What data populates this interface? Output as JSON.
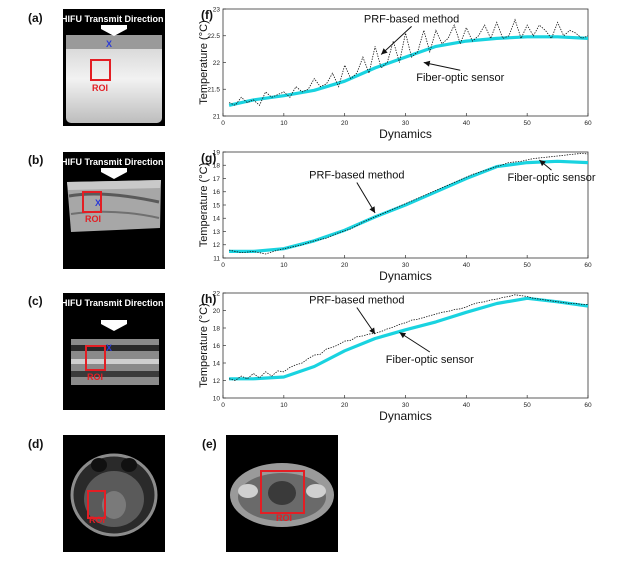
{
  "panels": {
    "a": {
      "label": "(a)",
      "direction_text": "HIFU Transmit Direction",
      "roi_text": "ROI",
      "marker": "X"
    },
    "b": {
      "label": "(b)",
      "direction_text": "HIFU Transmit Direction",
      "roi_text": "ROI",
      "marker": "X"
    },
    "c": {
      "label": "(c)",
      "direction_text": "HIFU Transmit Direction",
      "roi_text": "ROI",
      "marker": "X"
    },
    "d": {
      "label": "(d)",
      "roi_text": "ROI"
    },
    "e": {
      "label": "(e)",
      "roi_text": "ROI"
    }
  },
  "colors": {
    "sensor": "#19d3e0",
    "prf": "#111111",
    "roi": "#e31e24"
  },
  "chart_data": [
    {
      "panel": "(f)",
      "type": "line",
      "xlabel": "Dynamics",
      "ylabel": "Temperature (°C)",
      "xlim": [
        0,
        60
      ],
      "ylim": [
        21,
        23
      ],
      "xticks": [
        0,
        10,
        20,
        30,
        40,
        50,
        60
      ],
      "yticks": [
        21,
        21.5,
        22,
        22.5,
        23
      ],
      "ytick_labels": [
        "21",
        "21.5",
        "22",
        "22.5",
        "23"
      ],
      "annotations": [
        {
          "text": "PRF-based method",
          "x": 31,
          "y": 22.75,
          "ax": 26,
          "ay": 22.15
        },
        {
          "text": "Fiber-optic sensor",
          "x": 39,
          "y": 21.65,
          "ax": 33,
          "ay": 22.0
        }
      ],
      "series": [
        {
          "name": "Fiber-optic sensor",
          "style": "sensor",
          "x": [
            1,
            5,
            10,
            15,
            20,
            25,
            30,
            35,
            40,
            45,
            50,
            55,
            60
          ],
          "y": [
            21.2,
            21.3,
            21.38,
            21.48,
            21.65,
            21.9,
            22.1,
            22.3,
            22.4,
            22.45,
            22.48,
            22.48,
            22.45
          ]
        },
        {
          "name": "PRF-based method",
          "style": "prf",
          "x": [
            1,
            2,
            3,
            4,
            5,
            6,
            7,
            8,
            9,
            10,
            11,
            12,
            13,
            14,
            15,
            16,
            17,
            18,
            19,
            20,
            21,
            22,
            23,
            24,
            25,
            26,
            27,
            28,
            29,
            30,
            31,
            32,
            33,
            34,
            35,
            36,
            37,
            38,
            39,
            40,
            41,
            42,
            43,
            44,
            45,
            46,
            47,
            48,
            49,
            50,
            51,
            52,
            53,
            54,
            55,
            56,
            57,
            58,
            59,
            60
          ],
          "y": [
            21.25,
            21.2,
            21.35,
            21.25,
            21.3,
            21.2,
            21.45,
            21.35,
            21.4,
            21.45,
            21.35,
            21.55,
            21.45,
            21.5,
            21.7,
            21.55,
            21.6,
            21.8,
            21.55,
            21.95,
            21.7,
            21.8,
            22.1,
            21.8,
            22.3,
            21.9,
            22.0,
            22.4,
            22.0,
            22.55,
            22.1,
            22.2,
            22.6,
            22.2,
            22.6,
            22.35,
            22.45,
            22.7,
            22.35,
            22.65,
            22.4,
            22.5,
            22.7,
            22.45,
            22.75,
            22.45,
            22.5,
            22.8,
            22.45,
            22.7,
            22.5,
            22.7,
            22.6,
            22.45,
            22.75,
            22.5,
            22.6,
            22.55,
            22.45,
            22.5
          ]
        }
      ]
    },
    {
      "panel": "(g)",
      "type": "line",
      "xlabel": "Dynamics",
      "ylabel": "Temperature (°C)",
      "xlim": [
        0,
        60
      ],
      "ylim": [
        11,
        19
      ],
      "xticks": [
        0,
        10,
        20,
        30,
        40,
        50,
        60
      ],
      "yticks": [
        11,
        12,
        13,
        14,
        15,
        16,
        17,
        18,
        19
      ],
      "ytick_labels": [
        "11",
        "12",
        "13",
        "14",
        "15",
        "16",
        "17",
        "18",
        "19"
      ],
      "annotations": [
        {
          "text": "PRF-based method",
          "x": 22,
          "y": 17.0,
          "ax": 25,
          "ay": 14.4
        },
        {
          "text": "Fiber-optic sensor",
          "x": 54,
          "y": 16.8,
          "ax": 52,
          "ay": 18.4
        }
      ],
      "series": [
        {
          "name": "Fiber-optic sensor",
          "style": "sensor",
          "x": [
            1,
            5,
            10,
            15,
            20,
            25,
            30,
            35,
            40,
            45,
            50,
            55,
            60
          ],
          "y": [
            11.5,
            11.5,
            11.7,
            12.3,
            13.1,
            14.1,
            15.0,
            16.0,
            17.0,
            17.9,
            18.2,
            18.3,
            18.2
          ]
        },
        {
          "name": "PRF-based method",
          "style": "prf",
          "x": [
            1,
            3,
            5,
            7,
            9,
            11,
            13,
            15,
            17,
            19,
            21,
            23,
            25,
            27,
            29,
            31,
            33,
            35,
            37,
            39,
            41,
            43,
            45,
            47,
            49,
            51,
            53,
            55,
            57,
            59,
            60
          ],
          "y": [
            11.6,
            11.4,
            11.5,
            11.3,
            11.6,
            11.8,
            12.0,
            12.3,
            12.5,
            12.9,
            13.2,
            13.7,
            14.1,
            14.5,
            14.9,
            15.3,
            15.7,
            16.1,
            16.5,
            16.9,
            17.3,
            17.6,
            17.9,
            18.2,
            18.3,
            18.5,
            18.6,
            18.7,
            18.8,
            18.9,
            18.85
          ]
        }
      ]
    },
    {
      "panel": "(h)",
      "type": "line",
      "xlabel": "Dynamics",
      "ylabel": "Temperature (°C)",
      "xlim": [
        0,
        60
      ],
      "ylim": [
        10,
        22
      ],
      "xticks": [
        0,
        10,
        20,
        30,
        40,
        50,
        60
      ],
      "yticks": [
        10,
        12,
        14,
        16,
        18,
        20,
        22
      ],
      "ytick_labels": [
        "10",
        "12",
        "14",
        "16",
        "18",
        "20",
        "22"
      ],
      "annotations": [
        {
          "text": "PRF-based method",
          "x": 22,
          "y": 20.8,
          "ax": 25,
          "ay": 17.3
        },
        {
          "text": "Fiber-optic sensor",
          "x": 34,
          "y": 14.0,
          "ax": 29,
          "ay": 17.5
        }
      ],
      "series": [
        {
          "name": "Fiber-optic sensor",
          "style": "sensor",
          "x": [
            1,
            5,
            10,
            15,
            20,
            25,
            30,
            35,
            40,
            45,
            50,
            55,
            60
          ],
          "y": [
            12.2,
            12.2,
            12.4,
            13.6,
            15.4,
            16.8,
            17.8,
            18.7,
            19.8,
            20.8,
            21.4,
            21.0,
            20.5
          ]
        },
        {
          "name": "PRF-based method",
          "style": "prf",
          "x": [
            1,
            2,
            3,
            4,
            5,
            6,
            7,
            8,
            9,
            10,
            11,
            12,
            13,
            14,
            15,
            16,
            17,
            18,
            19,
            20,
            21,
            22,
            23,
            24,
            25,
            26,
            27,
            28,
            29,
            30,
            31,
            32,
            33,
            34,
            35,
            36,
            37,
            38,
            39,
            40,
            41,
            42,
            43,
            44,
            45,
            46,
            47,
            48,
            49,
            50,
            51,
            52,
            53,
            54,
            55,
            56,
            57,
            58,
            59,
            60
          ],
          "y": [
            12.2,
            12.0,
            12.5,
            12.2,
            12.8,
            12.3,
            13.0,
            12.5,
            13.1,
            13.0,
            13.5,
            13.8,
            14.0,
            14.5,
            14.9,
            15.0,
            15.6,
            15.8,
            16.1,
            16.5,
            16.6,
            17.0,
            17.1,
            17.3,
            17.4,
            17.6,
            17.9,
            18.1,
            18.4,
            18.6,
            18.9,
            19.0,
            19.2,
            19.4,
            19.6,
            19.8,
            19.9,
            20.1,
            20.2,
            20.4,
            20.7,
            20.9,
            21.0,
            21.2,
            21.3,
            21.5,
            21.6,
            21.8,
            21.7,
            21.6,
            21.4,
            21.3,
            21.2,
            21.1,
            21.0,
            20.9,
            20.8,
            20.8,
            20.7,
            20.7
          ]
        }
      ]
    }
  ]
}
